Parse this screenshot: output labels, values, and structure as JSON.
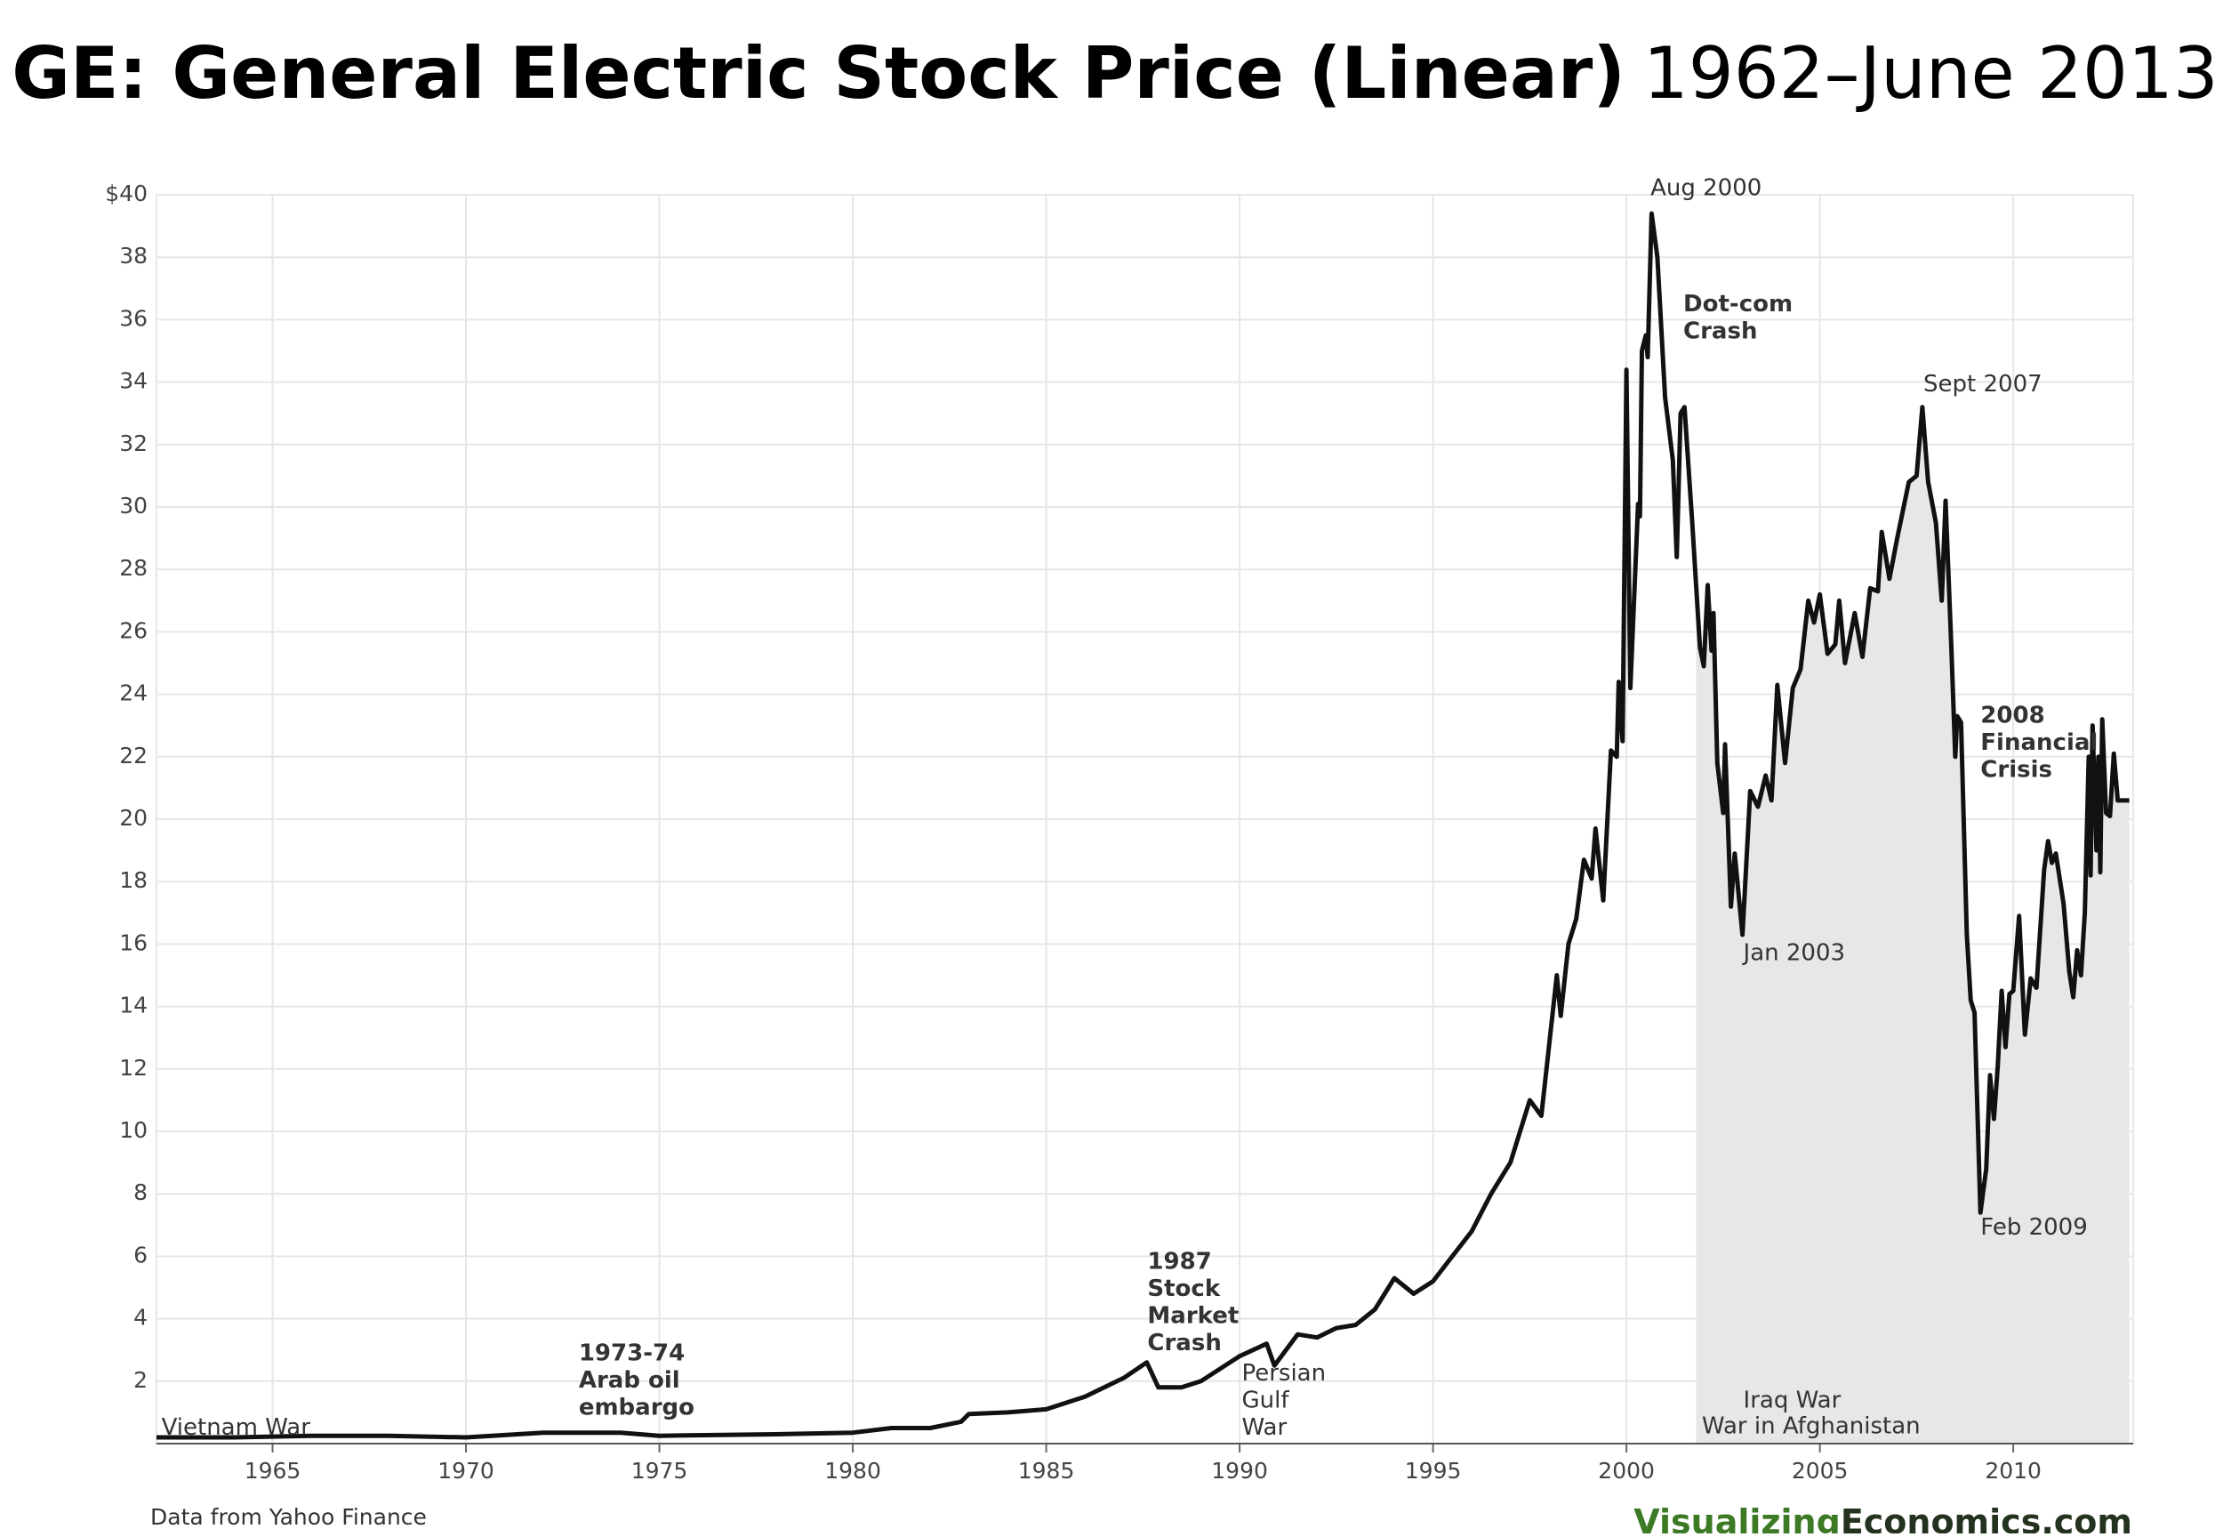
{
  "chart_data": {
    "type": "line",
    "title": "GE: General Electric Stock Price (Linear)",
    "subtitle": "1962–June 2013",
    "source": "Data from Yahoo Finance",
    "brand": [
      "Visualizing",
      "Economics.com"
    ],
    "xlim": [
      1962,
      2013.1
    ],
    "xticks": [
      1965,
      1970,
      1975,
      1980,
      1985,
      1990,
      1995,
      2000,
      2005,
      2010
    ],
    "ylim": [
      0,
      40
    ],
    "yticks": [
      2,
      4,
      6,
      8,
      10,
      12,
      14,
      16,
      18,
      20,
      22,
      24,
      26,
      28,
      30,
      32,
      34,
      36,
      38,
      {
        "value": 40,
        "label": "$40"
      }
    ],
    "grid": true,
    "shade_from": 2001.8,
    "shade_color": "#e6e7e6",
    "x": [
      1962,
      1964,
      1966,
      1968,
      1970,
      1972,
      1974,
      1975,
      1978,
      1980,
      1981,
      1982,
      1982.8,
      1983,
      1984,
      1985,
      1986,
      1987,
      1987.6,
      1987.9,
      1988.5,
      1989,
      1990,
      1990.7,
      1990.9,
      1991.5,
      1992,
      1992.5,
      1993,
      1993.5,
      1994,
      1994.5,
      1995,
      1995.5,
      1996,
      1996.5,
      1997,
      1997.5,
      1997.8,
      1998.2,
      1998.3,
      1998.5,
      1998.7,
      1998.9,
      1999.1,
      1999.2,
      1999.4,
      1999.6,
      1999.75,
      1999.8,
      1999.9,
      2000.0,
      2000.1,
      2000.3,
      2000.35,
      2000.4,
      2000.5,
      2000.55,
      2000.65,
      2000.8,
      2001.0,
      2001.2,
      2001.3,
      2001.4,
      2001.5,
      2001.7,
      2001.9,
      2002.0,
      2002.1,
      2002.2,
      2002.25,
      2002.35,
      2002.5,
      2002.55,
      2002.7,
      2002.8,
      2003.0,
      2003.2,
      2003.4,
      2003.6,
      2003.75,
      2003.9,
      2004.1,
      2004.3,
      2004.5,
      2004.7,
      2004.85,
      2005.0,
      2005.2,
      2005.4,
      2005.5,
      2005.65,
      2005.9,
      2006.1,
      2006.3,
      2006.5,
      2006.6,
      2006.8,
      2007.0,
      2007.3,
      2007.5,
      2007.65,
      2007.8,
      2008.0,
      2008.15,
      2008.25,
      2008.4,
      2008.5,
      2008.55,
      2008.65,
      2008.8,
      2008.9,
      2009.0,
      2009.15,
      2009.3,
      2009.4,
      2009.5,
      2009.6,
      2009.7,
      2009.8,
      2009.9,
      2010.0,
      2010.15,
      2010.3,
      2010.45,
      2010.6,
      2010.8,
      2010.9,
      2011.0,
      2011.1,
      2011.3,
      2011.45,
      2011.55,
      2011.65,
      2011.75,
      2011.85,
      2011.95,
      2012.0,
      2012.05,
      2012.15,
      2012.2,
      2012.25,
      2012.3,
      2012.4,
      2012.5,
      2012.6,
      2012.7,
      2013.0
    ],
    "series": [
      {
        "name": "GE",
        "color": "#111111",
        "values": [
          0.2,
          0.2,
          0.25,
          0.25,
          0.2,
          0.35,
          0.35,
          0.25,
          0.3,
          0.35,
          0.5,
          0.5,
          0.7,
          0.95,
          1.0,
          1.1,
          1.5,
          2.1,
          2.6,
          1.8,
          1.8,
          2.0,
          2.8,
          3.2,
          2.5,
          3.5,
          3.4,
          3.7,
          3.8,
          4.3,
          5.3,
          4.8,
          5.2,
          6.0,
          6.8,
          8.0,
          9.0,
          11.0,
          10.5,
          15.0,
          13.7,
          16.0,
          16.8,
          18.7,
          18.1,
          19.7,
          17.4,
          22.2,
          22.0,
          24.4,
          22.5,
          34.4,
          24.2,
          30.1,
          29.7,
          35.0,
          35.5,
          34.8,
          39.4,
          38.0,
          33.5,
          31.5,
          28.4,
          33.0,
          33.2,
          29.5,
          25.5,
          24.9,
          27.5,
          25.4,
          26.6,
          21.8,
          20.2,
          22.4,
          17.2,
          18.9,
          16.3,
          20.9,
          20.4,
          21.4,
          20.6,
          24.3,
          21.8,
          24.2,
          24.8,
          27.0,
          26.3,
          27.2,
          25.3,
          25.6,
          27.0,
          25.0,
          26.6,
          25.2,
          27.4,
          27.3,
          29.2,
          27.7,
          29.0,
          30.8,
          31.0,
          33.2,
          30.8,
          29.5,
          27.0,
          30.2,
          25.5,
          22.0,
          23.3,
          23.1,
          16.3,
          14.2,
          13.8,
          7.4,
          8.8,
          11.8,
          10.4,
          12.1,
          14.5,
          12.7,
          14.4,
          14.5,
          16.9,
          13.1,
          14.9,
          14.6,
          18.4,
          19.3,
          18.6,
          18.9,
          17.3,
          15.1,
          14.3,
          15.8,
          15.0,
          17.0,
          22.0,
          18.2,
          23.0,
          19.0,
          22.0,
          18.3,
          23.2,
          20.2,
          20.1,
          22.1,
          20.6,
          20.6
        ]
      }
    ],
    "annotations": [
      {
        "lines": [
          "Vietnam War"
        ],
        "bold": false
      },
      {
        "lines": [
          "1973-74",
          "Arab oil",
          "embargo"
        ],
        "bold": true
      },
      {
        "lines": [
          "1987",
          "Stock",
          "Market",
          "Crash"
        ],
        "bold": true
      },
      {
        "lines": [
          "Persian",
          "Gulf",
          "War"
        ],
        "bold": false
      },
      {
        "lines": [
          "Aug 2000"
        ],
        "bold": false
      },
      {
        "lines": [
          "Dot-com",
          "Crash"
        ],
        "bold": true
      },
      {
        "lines": [
          "Jan 2003"
        ],
        "bold": false
      },
      {
        "lines": [
          "Sept 2007"
        ],
        "bold": false
      },
      {
        "lines": [
          "2008",
          "Financial",
          "Crisis"
        ],
        "bold": true
      },
      {
        "lines": [
          "Feb 2009"
        ],
        "bold": false
      },
      {
        "lines": [
          "Iraq War"
        ],
        "bold": false
      },
      {
        "lines": [
          "War in Afghanistan"
        ],
        "bold": false
      }
    ]
  }
}
